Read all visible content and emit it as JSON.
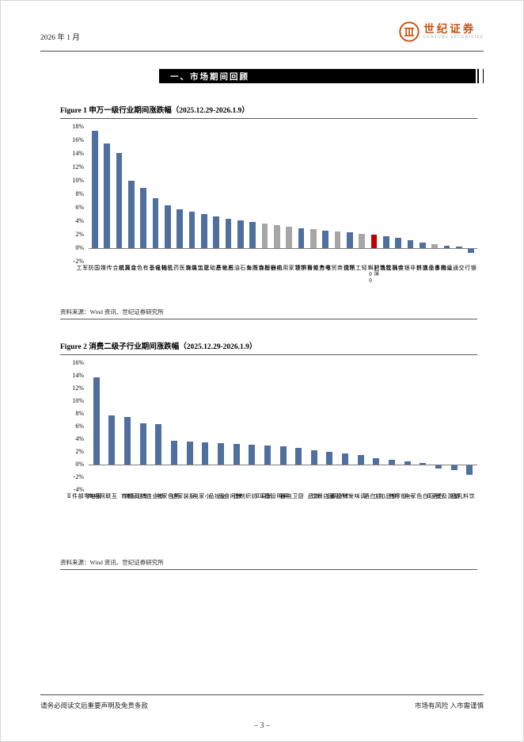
{
  "page": {
    "header": {
      "date": "2026 年 1 月",
      "brand_name": "世纪证券",
      "brand_sub": "CENTURY SECURITIES"
    },
    "section_title": "一、市场期间回顾",
    "figures": [
      {
        "title": "Figure 1  申万一级行业期间涨跌幅（2025.12.29-2026.1.9）",
        "source": "资料来源：Wind 资讯、世纪证券研究所"
      },
      {
        "title": "Figure 2  消费二级子行业期间涨跌幅（2025.12.29-2026.1.9）",
        "source": "资料来源：Wind 资讯、世纪证券研究所"
      }
    ],
    "footer": {
      "left": "请务必阅读文后重要声明及免责条款",
      "right": "市场有风险 入市需谨慎",
      "page_number": "– 3 –"
    }
  },
  "colors": {
    "brand_orange": "#c8500f",
    "bar_blue": "#4f6f9f",
    "bar_gray": "#a6a6a6",
    "bar_red": "#c00000"
  },
  "chart_data": [
    {
      "type": "bar",
      "title": "申万一级行业期间涨跌幅（2025.12.29-2026.1.9）",
      "categories": [
        "国防军工",
        "传媒",
        "综合",
        "计算机",
        "有色金属",
        "电子",
        "机械设备",
        "医药生物",
        "煤炭",
        "建筑装饰",
        "基础化工",
        "房地产",
        "石油石化",
        "汽车",
        "社会服务",
        "纺织服饰",
        "家用电器",
        "钢铁",
        "美容护理",
        "电力设备",
        "商贸零售",
        "环保",
        "轻工制造",
        "沪深300",
        "建筑材料",
        "农林牧渔",
        "非银金融",
        "通信",
        "食品饮料",
        "公用事业",
        "交通运输",
        "银行"
      ],
      "values": [
        17.4,
        15.5,
        14.1,
        10.0,
        8.9,
        7.4,
        6.3,
        5.8,
        5.4,
        5.1,
        4.7,
        4.3,
        4.1,
        3.9,
        3.6,
        3.4,
        3.2,
        3.0,
        2.8,
        2.6,
        2.5,
        2.3,
        2.1,
        2.0,
        1.8,
        1.5,
        1.2,
        0.8,
        0.6,
        0.4,
        0.2,
        -0.6
      ],
      "bar_colors": [
        "#4f6f9f",
        "#4f6f9f",
        "#4f6f9f",
        "#4f6f9f",
        "#4f6f9f",
        "#4f6f9f",
        "#4f6f9f",
        "#4f6f9f",
        "#4f6f9f",
        "#4f6f9f",
        "#4f6f9f",
        "#4f6f9f",
        "#4f6f9f",
        "#4f6f9f",
        "#a6a6a6",
        "#a6a6a6",
        "#a6a6a6",
        "#4f6f9f",
        "#a6a6a6",
        "#4f6f9f",
        "#a6a6a6",
        "#4f6f9f",
        "#a6a6a6",
        "#c00000",
        "#4f6f9f",
        "#4f6f9f",
        "#4f6f9f",
        "#4f6f9f",
        "#a6a6a6",
        "#4f6f9f",
        "#4f6f9f",
        "#4f6f9f"
      ],
      "ylim": [
        -2,
        18
      ],
      "yticks": [
        "18%",
        "16%",
        "14%",
        "12%",
        "10%",
        "8%",
        "6%",
        "4%",
        "2%",
        "0%",
        "-2%"
      ],
      "xlabel": "",
      "ylabel": "",
      "grid": false,
      "legend": "none"
    },
    {
      "type": "bar",
      "title": "消费二级子行业期间涨跌幅（2025.12.29-2026.1.9）",
      "categories": [
        "家电零部件Ⅱ",
        "互联网电商",
        "教育",
        "专业服务",
        "专业连锁Ⅱ",
        "黑色家电",
        "服装家纺",
        "小家电",
        "化妆品",
        "休闲食品",
        "纺织制造",
        "贸易Ⅱ",
        "照明设备Ⅱ",
        "厨卫电器",
        "饰品",
        "酒店餐饮",
        "个护用品",
        "调味发酵品Ⅱ",
        "非白酒",
        "食品加工",
        "一般零售",
        "白色家电",
        "白酒Ⅱ",
        "旅游及景区",
        "饮料乳品"
      ],
      "values": [
        13.7,
        7.7,
        7.5,
        6.5,
        6.4,
        3.8,
        3.6,
        3.5,
        3.4,
        3.2,
        3.1,
        3.0,
        2.9,
        2.6,
        2.2,
        2.0,
        1.7,
        1.5,
        1.0,
        0.8,
        0.5,
        0.3,
        -0.5,
        -0.8,
        -1.5
      ],
      "bar_color": "#4f6f9f",
      "ylim": [
        -4,
        16
      ],
      "yticks": [
        "16%",
        "14%",
        "12%",
        "10%",
        "8%",
        "6%",
        "4%",
        "2%",
        "0%",
        "-2%",
        "-4%"
      ],
      "xlabel": "",
      "ylabel": "",
      "grid": false,
      "legend": "none"
    }
  ]
}
